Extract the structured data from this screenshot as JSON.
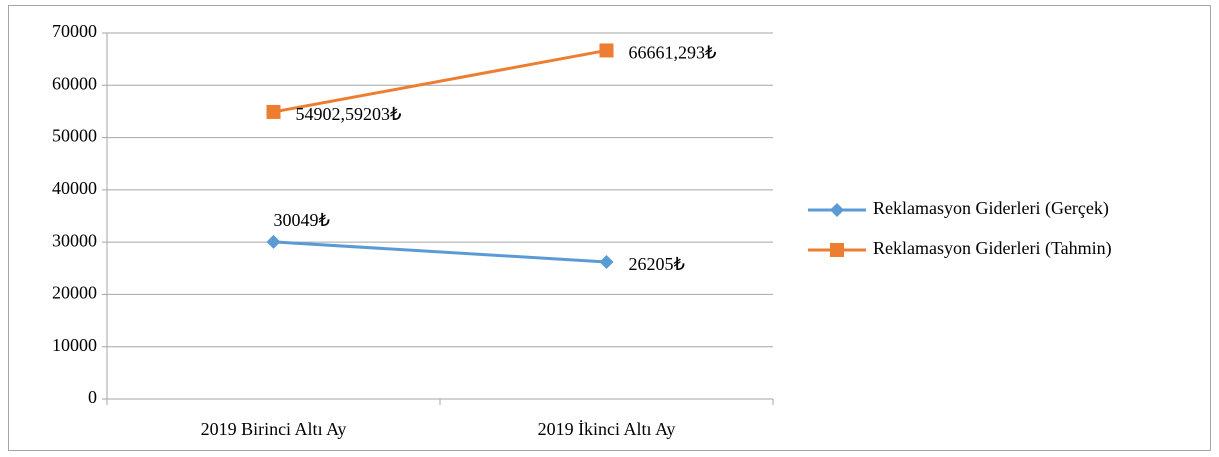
{
  "chart_data": {
    "type": "line",
    "categories": [
      "2019 Birinci Altı Ay",
      "2019 İkinci Altı Ay"
    ],
    "series": [
      {
        "name": "Reklamasyon Giderleri (Gerçek)",
        "color": "#5b9bd5",
        "marker": "diamond",
        "values": [
          30049,
          26205
        ],
        "value_labels": [
          "30049₺",
          "26205₺"
        ]
      },
      {
        "name": "Reklamasyon Giderleri (Tahmin)",
        "color": "#ed7d31",
        "marker": "square",
        "values": [
          54902.59203,
          66661.293
        ],
        "value_labels": [
          "54902,59203₺",
          "66661,293₺"
        ]
      }
    ],
    "ylim": [
      0,
      70000
    ],
    "yticks": [
      0,
      10000,
      20000,
      30000,
      40000,
      50000,
      60000,
      70000
    ],
    "grid": true,
    "legend": "right"
  }
}
